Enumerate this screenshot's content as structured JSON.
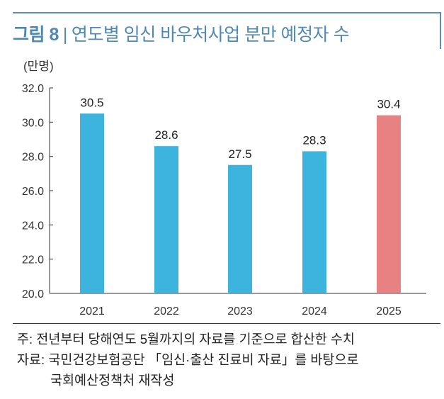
{
  "figure": {
    "label": "그림 8",
    "separator": "|",
    "title": "연도별 임신 바우처사업 분만 예정자 수"
  },
  "chart_data": {
    "type": "bar",
    "title": "연도별 임신 바우처사업 분만 예정자 수",
    "unit": "(만명)",
    "categories": [
      "2021",
      "2022",
      "2023",
      "2024",
      "2025"
    ],
    "values": [
      30.5,
      28.6,
      27.5,
      28.3,
      30.4
    ],
    "value_labels": [
      "30.5",
      "28.6",
      "27.5",
      "28.3",
      "30.4"
    ],
    "ylim": [
      20.0,
      32.0
    ],
    "yticks": [
      "20.0",
      "22.0",
      "24.0",
      "26.0",
      "28.0",
      "30.0",
      "32.0"
    ],
    "grid": false,
    "legend": "none",
    "colors": {
      "default": "#3cb4de",
      "highlight": "#e88282"
    },
    "highlight_categories": [
      "2025"
    ]
  },
  "notes": {
    "note": "주: 전년부터 당해연도 5월까지의 자료를 기준으로 합산한 수치",
    "source_line1": "자료: 국민건강보험공단 「임신·출산 진료비 자료」를 바탕으로",
    "source_line2": "국회예산정책처 재작성"
  }
}
